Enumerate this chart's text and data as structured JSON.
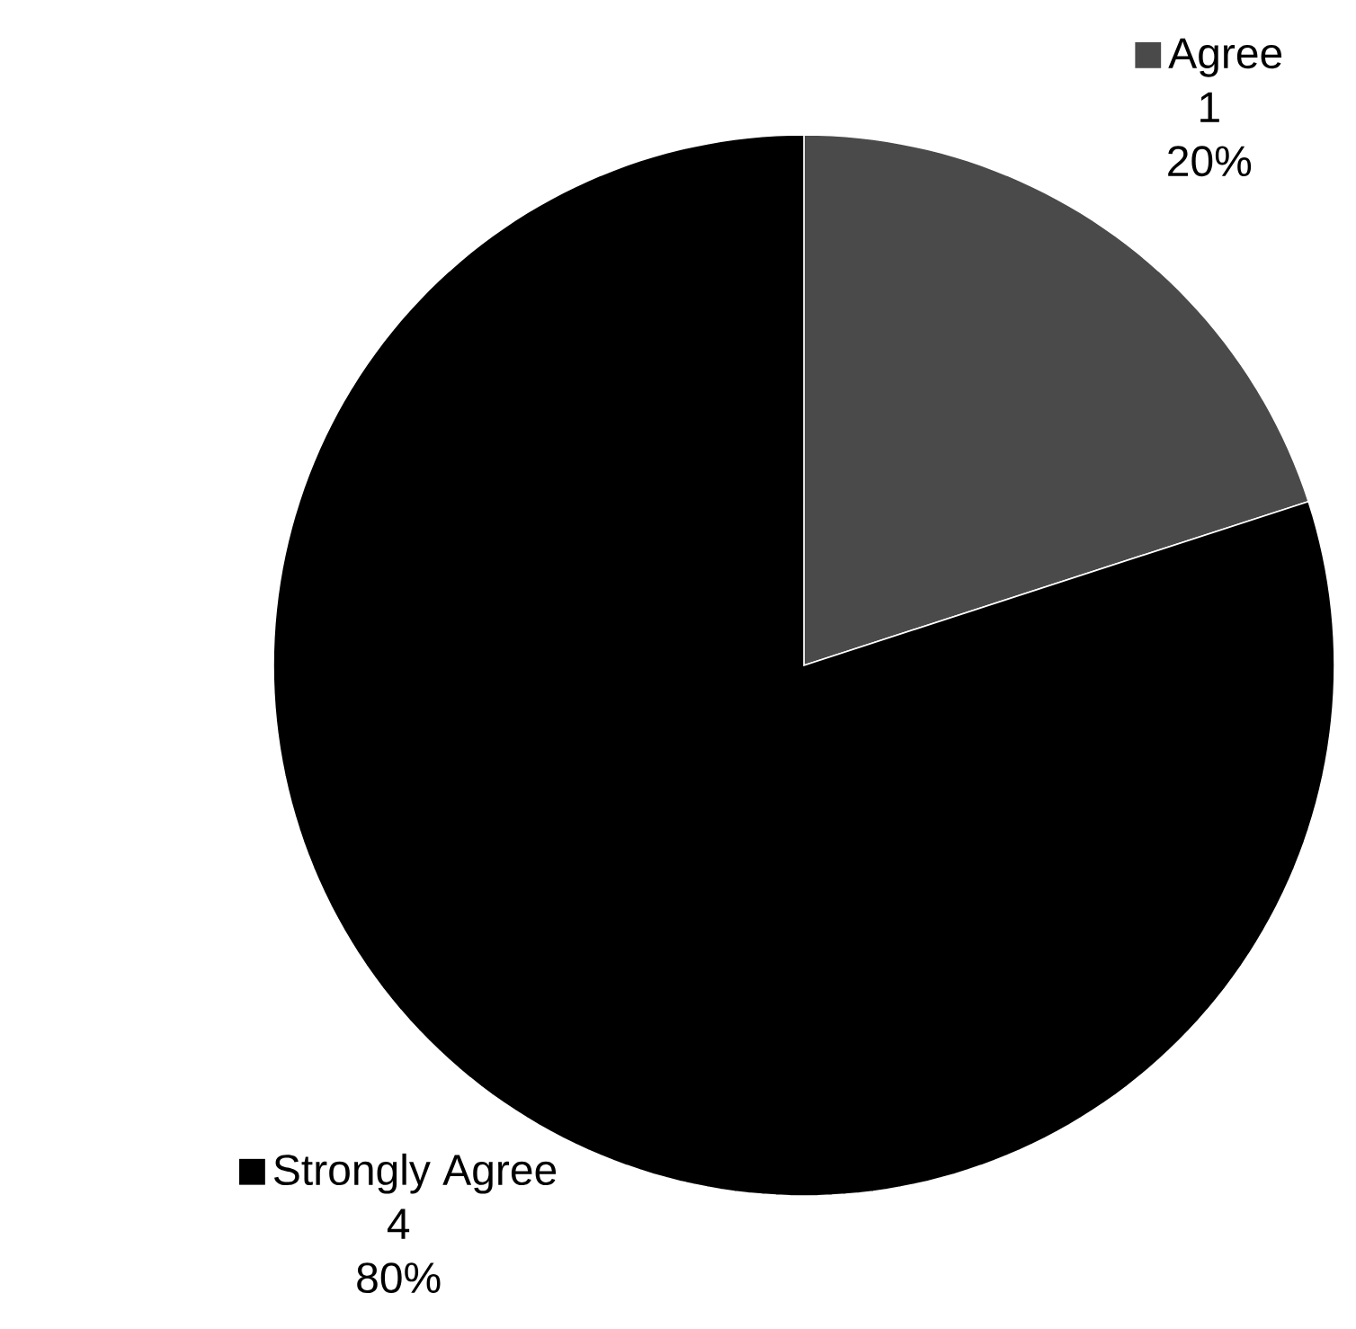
{
  "chart_data": {
    "type": "pie",
    "categories": [
      "Agree",
      "Strongly Agree"
    ],
    "values": [
      20,
      80
    ],
    "colors": [
      "#4a4a4a",
      "#000000"
    ],
    "value_labels": [
      "20%",
      "80%"
    ],
    "annotations": [
      "1",
      "4"
    ],
    "legend": "right"
  }
}
